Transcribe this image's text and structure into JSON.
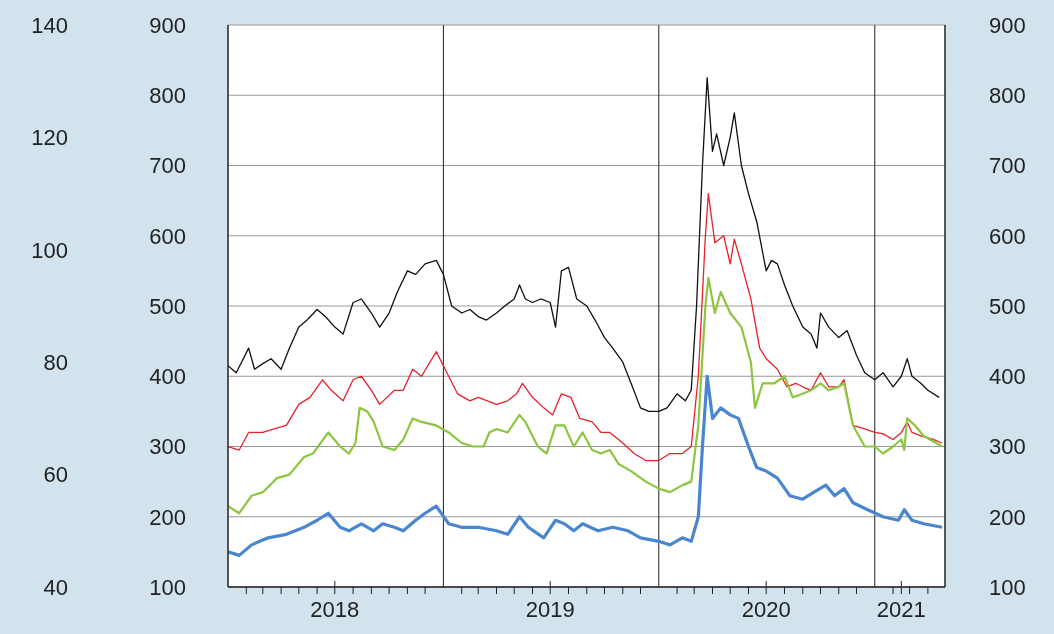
{
  "chart_data": {
    "type": "line",
    "xlim": [
      "2018-01-01",
      "2021-04-30"
    ],
    "xticks": [
      {
        "value": "2018-02-01",
        "label": null
      },
      {
        "value": "2018-03-01",
        "label": null
      },
      {
        "value": "2018-04-01",
        "label": null
      },
      {
        "value": "2018-05-01",
        "label": null
      },
      {
        "value": "2018-06-01",
        "label": null
      },
      {
        "value": "2018-07-01",
        "label": "2018"
      },
      {
        "value": "2018-08-01",
        "label": null
      },
      {
        "value": "2018-09-01",
        "label": null
      },
      {
        "value": "2018-10-01",
        "label": null
      },
      {
        "value": "2018-11-01",
        "label": null
      },
      {
        "value": "2018-12-01",
        "label": null
      },
      {
        "value": "2019-02-01",
        "label": null
      },
      {
        "value": "2019-03-01",
        "label": null
      },
      {
        "value": "2019-04-01",
        "label": null
      },
      {
        "value": "2019-05-01",
        "label": null
      },
      {
        "value": "2019-06-01",
        "label": null
      },
      {
        "value": "2019-07-01",
        "label": "2019"
      },
      {
        "value": "2019-08-01",
        "label": null
      },
      {
        "value": "2019-09-01",
        "label": null
      },
      {
        "value": "2019-10-01",
        "label": null
      },
      {
        "value": "2019-11-01",
        "label": null
      },
      {
        "value": "2019-12-01",
        "label": null
      },
      {
        "value": "2020-02-01",
        "label": null
      },
      {
        "value": "2020-03-01",
        "label": null
      },
      {
        "value": "2020-04-01",
        "label": null
      },
      {
        "value": "2020-05-01",
        "label": null
      },
      {
        "value": "2020-06-01",
        "label": null
      },
      {
        "value": "2020-07-01",
        "label": "2020"
      },
      {
        "value": "2020-08-01",
        "label": null
      },
      {
        "value": "2020-09-01",
        "label": null
      },
      {
        "value": "2020-10-01",
        "label": null
      },
      {
        "value": "2020-11-01",
        "label": null
      },
      {
        "value": "2020-12-01",
        "label": null
      },
      {
        "value": "2021-02-01",
        "label": null
      },
      {
        "value": "2021-02-15",
        "label": "2021"
      },
      {
        "value": "2021-03-01",
        "label": null
      },
      {
        "value": "2021-04-01",
        "label": null
      }
    ],
    "ylim": [
      100,
      900
    ],
    "yticks": [
      100,
      200,
      300,
      400,
      500,
      600,
      700,
      800,
      900
    ],
    "y2lim": [
      100,
      900
    ],
    "y2ticks": [
      100,
      200,
      300,
      400,
      500,
      600,
      700,
      800,
      900
    ],
    "y3lim": [
      40,
      140
    ],
    "y3ticks": [
      40,
      60,
      80,
      100,
      120,
      140
    ],
    "grid": "y",
    "legend": false,
    "marker": "none",
    "line_style": "solid",
    "ref_lines": [
      {
        "axis": "x",
        "value": "2019-01-01",
        "color": "#222222"
      },
      {
        "axis": "x",
        "value": "2020-01-01",
        "color": "#222222"
      },
      {
        "axis": "x",
        "value": "2021-01-01",
        "color": "#222222"
      }
    ],
    "series": [
      {
        "color": "#111111",
        "x": [
          "2018-01-01",
          "2018-01-15",
          "2018-02-05",
          "2018-02-15",
          "2018-03-01",
          "2018-03-15",
          "2018-04-01",
          "2018-04-15",
          "2018-05-01",
          "2018-05-15",
          "2018-06-01",
          "2018-06-15",
          "2018-07-01",
          "2018-07-15",
          "2018-08-01",
          "2018-08-15",
          "2018-09-01",
          "2018-09-15",
          "2018-10-01",
          "2018-10-15",
          "2018-11-01",
          "2018-11-15",
          "2018-12-01",
          "2018-12-20",
          "2019-01-01",
          "2019-01-15",
          "2019-02-01",
          "2019-02-15",
          "2019-03-01",
          "2019-03-15",
          "2019-04-01",
          "2019-04-15",
          "2019-05-01",
          "2019-05-10",
          "2019-05-20",
          "2019-06-01",
          "2019-06-15",
          "2019-07-01",
          "2019-07-10",
          "2019-07-20",
          "2019-08-01",
          "2019-08-15",
          "2019-09-01",
          "2019-09-15",
          "2019-10-01",
          "2019-10-15",
          "2019-11-01",
          "2019-11-15",
          "2019-12-01",
          "2019-12-15",
          "2020-01-01",
          "2020-01-15",
          "2020-02-01",
          "2020-02-15",
          "2020-02-25",
          "2020-03-05",
          "2020-03-15",
          "2020-03-23",
          "2020-04-01",
          "2020-04-08",
          "2020-04-20",
          "2020-05-01",
          "2020-05-08",
          "2020-05-20",
          "2020-06-01",
          "2020-06-15",
          "2020-07-01",
          "2020-07-10",
          "2020-07-20",
          "2020-08-01",
          "2020-08-15",
          "2020-09-01",
          "2020-09-15",
          "2020-09-25",
          "2020-10-01",
          "2020-10-15",
          "2020-11-01",
          "2020-11-15",
          "2020-12-01",
          "2020-12-15",
          "2021-01-01",
          "2021-01-15",
          "2021-02-01",
          "2021-02-15",
          "2021-02-25",
          "2021-03-05",
          "2021-03-20",
          "2021-04-01",
          "2021-04-20"
        ],
        "values": [
          415,
          405,
          440,
          410,
          418,
          425,
          410,
          440,
          470,
          480,
          495,
          485,
          470,
          460,
          505,
          510,
          490,
          470,
          490,
          520,
          550,
          545,
          560,
          565,
          545,
          500,
          490,
          495,
          485,
          480,
          490,
          500,
          510,
          530,
          510,
          505,
          510,
          505,
          470,
          550,
          555,
          510,
          500,
          480,
          455,
          440,
          420,
          390,
          355,
          350,
          350,
          355,
          375,
          365,
          380,
          500,
          700,
          825,
          720,
          745,
          700,
          740,
          775,
          700,
          660,
          620,
          550,
          565,
          560,
          530,
          500,
          470,
          460,
          440,
          490,
          470,
          455,
          465,
          430,
          405,
          395,
          405,
          385,
          400,
          425,
          400,
          390,
          380,
          370
        ]
      },
      {
        "color": "#e8202a",
        "x": [
          "2018-01-01",
          "2018-01-20",
          "2018-02-05",
          "2018-03-01",
          "2018-03-20",
          "2018-04-10",
          "2018-05-01",
          "2018-05-20",
          "2018-06-10",
          "2018-06-25",
          "2018-07-15",
          "2018-08-01",
          "2018-08-15",
          "2018-09-01",
          "2018-09-15",
          "2018-10-10",
          "2018-10-25",
          "2018-11-10",
          "2018-11-25",
          "2018-12-20",
          "2019-01-10",
          "2019-01-25",
          "2019-02-15",
          "2019-03-01",
          "2019-04-01",
          "2019-04-20",
          "2019-05-05",
          "2019-05-15",
          "2019-06-01",
          "2019-06-20",
          "2019-07-05",
          "2019-07-20",
          "2019-08-05",
          "2019-08-20",
          "2019-09-10",
          "2019-09-25",
          "2019-10-10",
          "2019-11-01",
          "2019-11-20",
          "2019-12-10",
          "2020-01-01",
          "2020-01-20",
          "2020-02-10",
          "2020-02-25",
          "2020-03-08",
          "2020-03-20",
          "2020-03-25",
          "2020-04-05",
          "2020-04-20",
          "2020-05-01",
          "2020-05-08",
          "2020-05-20",
          "2020-06-05",
          "2020-06-20",
          "2020-07-01",
          "2020-07-20",
          "2020-08-05",
          "2020-08-20",
          "2020-09-01",
          "2020-09-15",
          "2020-10-01",
          "2020-10-15",
          "2020-11-01",
          "2020-11-10",
          "2020-11-25",
          "2020-12-15",
          "2021-01-01",
          "2021-01-15",
          "2021-02-01",
          "2021-02-15",
          "2021-02-25",
          "2021-03-05",
          "2021-03-20",
          "2021-04-10",
          "2021-04-25"
        ],
        "values": [
          300,
          295,
          320,
          320,
          325,
          330,
          360,
          370,
          395,
          380,
          365,
          395,
          400,
          380,
          360,
          380,
          380,
          410,
          400,
          435,
          400,
          375,
          365,
          370,
          360,
          365,
          375,
          390,
          370,
          355,
          345,
          375,
          370,
          340,
          335,
          320,
          320,
          305,
          290,
          280,
          280,
          290,
          290,
          300,
          400,
          600,
          660,
          590,
          600,
          560,
          595,
          560,
          510,
          440,
          425,
          410,
          385,
          390,
          385,
          380,
          405,
          385,
          385,
          395,
          330,
          325,
          320,
          318,
          310,
          320,
          335,
          320,
          315,
          310,
          305
        ]
      },
      {
        "color": "#8cc63f",
        "x": [
          "2018-01-01",
          "2018-01-20",
          "2018-02-10",
          "2018-03-01",
          "2018-03-25",
          "2018-04-15",
          "2018-05-10",
          "2018-05-25",
          "2018-06-20",
          "2018-07-10",
          "2018-07-25",
          "2018-08-05",
          "2018-08-12",
          "2018-08-25",
          "2018-09-05",
          "2018-09-20",
          "2018-10-10",
          "2018-10-25",
          "2018-11-10",
          "2018-11-25",
          "2018-12-20",
          "2019-01-10",
          "2019-02-01",
          "2019-02-20",
          "2019-03-10",
          "2019-03-20",
          "2019-04-01",
          "2019-04-20",
          "2019-05-10",
          "2019-05-20",
          "2019-06-10",
          "2019-06-25",
          "2019-07-10",
          "2019-07-25",
          "2019-08-10",
          "2019-08-25",
          "2019-09-10",
          "2019-09-25",
          "2019-10-10",
          "2019-10-25",
          "2019-11-15",
          "2019-12-10",
          "2020-01-01",
          "2020-01-20",
          "2020-02-10",
          "2020-02-25",
          "2020-03-08",
          "2020-03-20",
          "2020-03-25",
          "2020-04-05",
          "2020-04-15",
          "2020-05-01",
          "2020-05-20",
          "2020-06-05",
          "2020-06-12",
          "2020-06-25",
          "2020-07-15",
          "2020-08-01",
          "2020-08-15",
          "2020-09-01",
          "2020-09-15",
          "2020-10-01",
          "2020-10-15",
          "2020-11-01",
          "2020-11-10",
          "2020-11-25",
          "2020-12-15",
          "2021-01-01",
          "2021-01-15",
          "2021-02-01",
          "2021-02-15",
          "2021-02-20",
          "2021-02-25",
          "2021-03-10",
          "2021-03-25",
          "2021-04-15",
          "2021-04-25"
        ],
        "values": [
          215,
          205,
          230,
          235,
          255,
          260,
          285,
          290,
          320,
          300,
          290,
          305,
          355,
          350,
          335,
          300,
          295,
          310,
          340,
          335,
          330,
          320,
          305,
          300,
          300,
          320,
          325,
          320,
          345,
          335,
          300,
          290,
          330,
          330,
          300,
          320,
          295,
          290,
          295,
          275,
          265,
          250,
          240,
          235,
          245,
          250,
          330,
          500,
          540,
          490,
          520,
          490,
          470,
          420,
          355,
          390,
          390,
          400,
          370,
          375,
          380,
          390,
          380,
          385,
          390,
          330,
          300,
          300,
          290,
          300,
          310,
          295,
          340,
          330,
          315,
          305,
          300
        ]
      },
      {
        "color": "#4a86d0",
        "x": [
          "2018-01-01",
          "2018-01-20",
          "2018-02-10",
          "2018-03-10",
          "2018-04-10",
          "2018-05-10",
          "2018-06-01",
          "2018-06-20",
          "2018-07-10",
          "2018-07-25",
          "2018-08-15",
          "2018-09-05",
          "2018-09-20",
          "2018-10-10",
          "2018-10-25",
          "2018-11-15",
          "2018-12-01",
          "2018-12-20",
          "2019-01-10",
          "2019-02-01",
          "2019-03-01",
          "2019-04-01",
          "2019-04-20",
          "2019-05-10",
          "2019-05-25",
          "2019-06-20",
          "2019-07-10",
          "2019-07-25",
          "2019-08-10",
          "2019-08-25",
          "2019-09-20",
          "2019-10-15",
          "2019-11-10",
          "2019-12-01",
          "2020-01-01",
          "2020-01-20",
          "2020-02-10",
          "2020-02-25",
          "2020-03-08",
          "2020-03-15",
          "2020-03-23",
          "2020-04-01",
          "2020-04-15",
          "2020-05-01",
          "2020-05-15",
          "2020-06-01",
          "2020-06-15",
          "2020-07-01",
          "2020-07-20",
          "2020-08-10",
          "2020-09-01",
          "2020-09-20",
          "2020-10-10",
          "2020-10-25",
          "2020-11-10",
          "2020-11-25",
          "2020-12-20",
          "2021-01-15",
          "2021-02-10",
          "2021-02-20",
          "2021-03-05",
          "2021-03-25",
          "2021-04-25"
        ],
        "values": [
          150,
          145,
          160,
          170,
          175,
          185,
          195,
          205,
          185,
          180,
          190,
          180,
          190,
          185,
          180,
          195,
          205,
          215,
          190,
          185,
          185,
          180,
          175,
          200,
          185,
          170,
          195,
          190,
          180,
          190,
          180,
          185,
          180,
          170,
          165,
          160,
          170,
          165,
          200,
          300,
          400,
          340,
          355,
          345,
          340,
          300,
          270,
          265,
          255,
          230,
          225,
          235,
          245,
          230,
          240,
          220,
          210,
          200,
          195,
          210,
          195,
          190,
          185
        ]
      }
    ]
  }
}
